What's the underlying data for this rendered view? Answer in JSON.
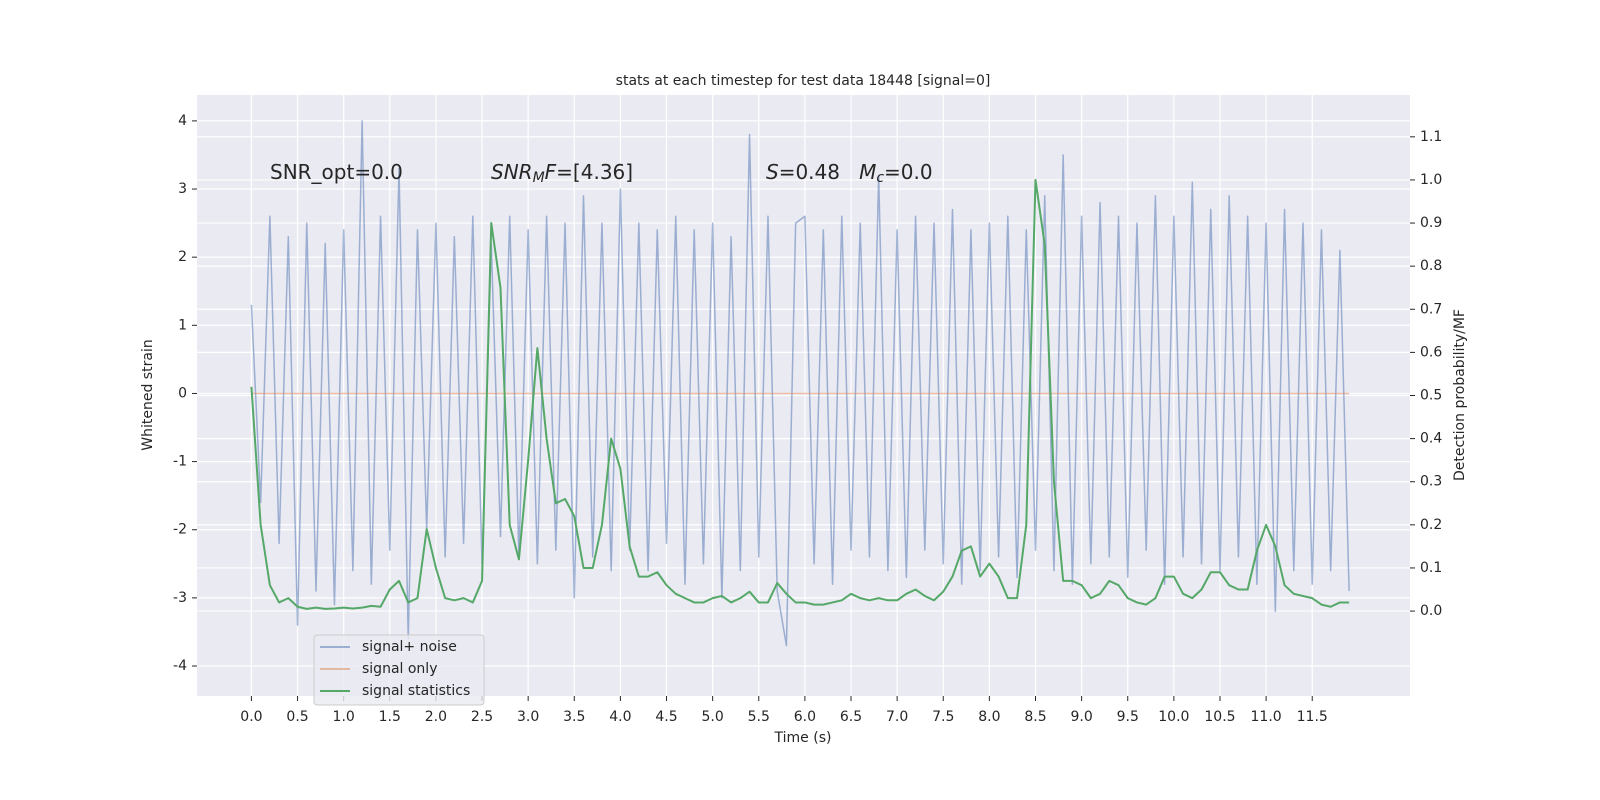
{
  "chart_data": {
    "type": "line",
    "title": "stats at each timestep for test data 18448 [signal=0]",
    "xlabel": "Time (s)",
    "ylabel": "Whitened strain",
    "y2label": "Detection probability/MF",
    "annotations": [
      [
        {
          "text": "SNR_opt=0.0",
          "style": "normal"
        }
      ],
      [
        {
          "text": "SNR",
          "style": "italic"
        },
        {
          "text": "M",
          "style": "sub"
        },
        {
          "text": "F",
          "style": "italic"
        },
        {
          "text": "=[4.36]",
          "style": "normal"
        }
      ],
      [
        {
          "text": "S",
          "style": "italic"
        },
        {
          "text": "=0.48   ",
          "style": "normal"
        },
        {
          "text": "M",
          "style": "italic"
        },
        {
          "text": "c",
          "style": "sub"
        },
        {
          "text": "=0.0",
          "style": "normal"
        }
      ]
    ],
    "x": [
      0,
      0.1,
      0.2,
      0.3,
      0.4,
      0.5,
      0.6,
      0.7,
      0.8,
      0.9,
      1,
      1.1,
      1.2,
      1.3,
      1.4,
      1.5,
      1.6,
      1.7,
      1.8,
      1.9,
      2,
      2.1,
      2.2,
      2.3,
      2.4,
      2.5,
      2.6,
      2.7,
      2.8,
      2.9,
      3,
      3.1,
      3.2,
      3.3,
      3.4,
      3.5,
      3.6,
      3.7,
      3.8,
      3.9,
      4,
      4.1,
      4.2,
      4.3,
      4.4,
      4.5,
      4.6,
      4.7,
      4.8,
      4.9,
      5,
      5.1,
      5.2,
      5.3,
      5.4,
      5.5,
      5.6,
      5.7,
      5.8,
      5.9,
      6,
      6.1,
      6.2,
      6.3,
      6.4,
      6.5,
      6.6,
      6.7,
      6.8,
      6.9,
      7,
      7.1,
      7.2,
      7.3,
      7.4,
      7.5,
      7.6,
      7.7,
      7.8,
      7.9,
      8,
      8.1,
      8.2,
      8.3,
      8.4,
      8.5,
      8.6,
      8.7,
      8.8,
      8.9,
      9,
      9.1,
      9.2,
      9.3,
      9.4,
      9.5,
      9.6,
      9.7,
      9.8,
      9.9,
      10,
      10.1,
      10.2,
      10.3,
      10.4,
      10.5,
      10.6,
      10.7,
      10.8,
      10.9,
      11,
      11.1,
      11.2,
      11.3,
      11.4,
      11.5,
      11.6,
      11.7,
      11.8,
      11.9
    ],
    "series": [
      {
        "name": "signal+ noise",
        "color": "#4c72b0",
        "opacity": 0.5,
        "axis": "y",
        "values": [
          1.3,
          -1.6,
          2.6,
          -2.2,
          2.3,
          -3.4,
          2.5,
          -2.9,
          2.2,
          -3.1,
          2.4,
          -2.6,
          4.0,
          -2.8,
          2.6,
          -2.3,
          3.3,
          -3.6,
          2.4,
          -2.0,
          2.5,
          -2.4,
          2.3,
          -2.2,
          2.6,
          -2.5,
          2.2,
          -2.1,
          2.6,
          -2.4,
          2.4,
          -2.5,
          2.6,
          -2.3,
          2.5,
          -3.0,
          2.9,
          -2.4,
          2.5,
          -2.6,
          3.0,
          -2.3,
          2.5,
          -2.6,
          2.4,
          -2.2,
          2.6,
          -2.8,
          2.4,
          -2.5,
          2.5,
          -3.0,
          2.3,
          -2.6,
          3.8,
          -2.4,
          2.6,
          -2.9,
          -3.7,
          2.5,
          2.6,
          -2.5,
          2.4,
          -2.8,
          2.6,
          -2.3,
          2.5,
          -2.4,
          3.2,
          -2.6,
          2.4,
          -2.7,
          2.6,
          -2.3,
          2.5,
          -2.5,
          2.7,
          -2.8,
          2.4,
          -2.6,
          2.5,
          -2.4,
          2.6,
          -2.7,
          2.4,
          -2.3,
          2.9,
          -2.6,
          3.5,
          -2.8,
          2.6,
          -2.5,
          2.8,
          -2.4,
          2.6,
          -2.7,
          2.5,
          -2.3,
          2.9,
          -2.8,
          2.6,
          -2.4,
          3.1,
          -2.5,
          2.7,
          -2.6,
          2.9,
          -2.4,
          2.6,
          -2.8,
          2.5,
          -3.2,
          2.7,
          -2.6,
          2.5,
          -2.8,
          2.4,
          -2.6,
          2.1,
          -2.9
        ]
      },
      {
        "name": "signal only",
        "color": "#dd8452",
        "opacity": 0.5,
        "axis": "y",
        "values": [
          0,
          0,
          0,
          0,
          0,
          0,
          0,
          0,
          0,
          0,
          0,
          0,
          0,
          0,
          0,
          0,
          0,
          0,
          0,
          0,
          0,
          0,
          0,
          0,
          0,
          0,
          0,
          0,
          0,
          0,
          0,
          0,
          0,
          0,
          0,
          0,
          0,
          0,
          0,
          0,
          0,
          0,
          0,
          0,
          0,
          0,
          0,
          0,
          0,
          0,
          0,
          0,
          0,
          0,
          0,
          0,
          0,
          0,
          0,
          0,
          0,
          0,
          0,
          0,
          0,
          0,
          0,
          0,
          0,
          0,
          0,
          0,
          0,
          0,
          0,
          0,
          0,
          0,
          0,
          0,
          0,
          0,
          0,
          0,
          0,
          0,
          0,
          0,
          0,
          0,
          0,
          0,
          0,
          0,
          0,
          0,
          0,
          0,
          0,
          0,
          0,
          0,
          0,
          0,
          0,
          0,
          0,
          0,
          0,
          0,
          0,
          0,
          0,
          0,
          0,
          0,
          0,
          0,
          0,
          0
        ]
      },
      {
        "name": "signal statistics",
        "color": "#55a868",
        "opacity": 1,
        "axis": "y2",
        "values": [
          0.52,
          0.2,
          0.06,
          0.02,
          0.03,
          0.01,
          0.005,
          0.008,
          0.005,
          0.006,
          0.008,
          0.006,
          0.008,
          0.012,
          0.01,
          0.05,
          0.07,
          0.02,
          0.03,
          0.19,
          0.1,
          0.03,
          0.025,
          0.03,
          0.02,
          0.07,
          0.9,
          0.75,
          0.2,
          0.12,
          0.35,
          0.61,
          0.4,
          0.25,
          0.26,
          0.22,
          0.1,
          0.1,
          0.2,
          0.4,
          0.33,
          0.15,
          0.08,
          0.08,
          0.09,
          0.06,
          0.04,
          0.03,
          0.02,
          0.02,
          0.03,
          0.035,
          0.02,
          0.03,
          0.045,
          0.02,
          0.02,
          0.065,
          0.04,
          0.02,
          0.02,
          0.015,
          0.015,
          0.02,
          0.025,
          0.04,
          0.03,
          0.025,
          0.03,
          0.025,
          0.025,
          0.04,
          0.05,
          0.035,
          0.025,
          0.045,
          0.08,
          0.14,
          0.15,
          0.08,
          0.11,
          0.08,
          0.03,
          0.03,
          0.2,
          1.0,
          0.85,
          0.3,
          0.07,
          0.07,
          0.06,
          0.03,
          0.04,
          0.07,
          0.06,
          0.03,
          0.02,
          0.015,
          0.03,
          0.08,
          0.08,
          0.04,
          0.03,
          0.05,
          0.09,
          0.09,
          0.06,
          0.05,
          0.05,
          0.14,
          0.2,
          0.15,
          0.06,
          0.04,
          0.035,
          0.03,
          0.015,
          0.01,
          0.02,
          0.02
        ]
      }
    ],
    "xlim": [
      -0.59,
      12.56
    ],
    "xticks": [
      {
        "value": 0,
        "label": "0.0"
      },
      0.5,
      {
        "value": 1,
        "label": "1.0"
      },
      1.5,
      {
        "value": 2,
        "label": "2.0"
      },
      2.5,
      {
        "value": 3,
        "label": "3.0"
      },
      3.5,
      {
        "value": 4,
        "label": "4.0"
      },
      4.5,
      {
        "value": 5,
        "label": "5.0"
      },
      5.5,
      {
        "value": 6,
        "label": "6.0"
      },
      6.5,
      {
        "value": 7,
        "label": "7.0"
      },
      7.5,
      {
        "value": 8,
        "label": "8.0"
      },
      8.5,
      {
        "value": 9,
        "label": "9.0"
      },
      9.5,
      {
        "value": 10,
        "label": "10.0"
      },
      10.5,
      {
        "value": 11,
        "label": "11.0"
      },
      11.5
    ],
    "ylim": [
      -4.44,
      4.38
    ],
    "yticks": [
      -4,
      -3,
      -2,
      -1,
      0,
      1,
      2,
      3,
      4
    ],
    "y2lim": [
      -0.197,
      1.197
    ],
    "y2ticks": [
      {
        "value": 0,
        "label": "0.0"
      },
      0.1,
      0.2,
      0.3,
      0.4,
      0.5,
      0.6,
      0.7,
      0.8,
      0.9,
      {
        "value": 1,
        "label": "1.0"
      },
      1.1
    ],
    "grid": true,
    "legend": "lower left",
    "background": "#eaeaf2"
  }
}
